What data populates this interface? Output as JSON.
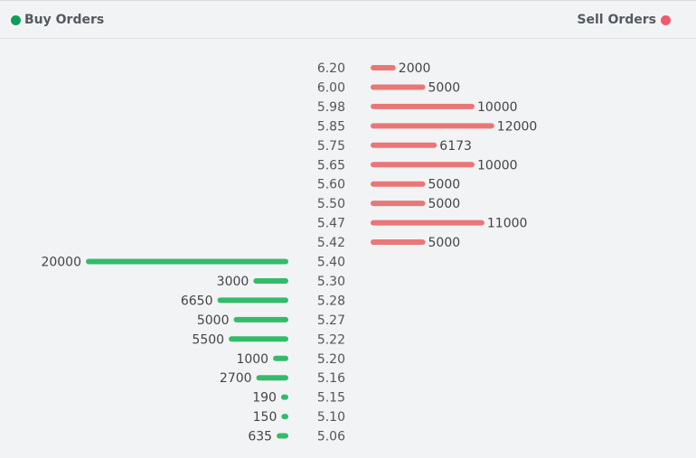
{
  "legend": {
    "buy_label": "Buy Orders",
    "sell_label": "Sell Orders",
    "buy_color": "#0f9d58",
    "sell_color": "#ef5a6f"
  },
  "chart_data": {
    "type": "bar",
    "orientation": "horizontal",
    "xlim": [
      0,
      20000
    ],
    "series": [
      {
        "name": "Sell Orders",
        "color": "#e97777",
        "points": [
          {
            "price": "6.20",
            "volume": 2000
          },
          {
            "price": "6.00",
            "volume": 5000
          },
          {
            "price": "5.98",
            "volume": 10000
          },
          {
            "price": "5.85",
            "volume": 12000
          },
          {
            "price": "5.75",
            "volume": 6173
          },
          {
            "price": "5.65",
            "volume": 10000
          },
          {
            "price": "5.60",
            "volume": 5000
          },
          {
            "price": "5.50",
            "volume": 5000
          },
          {
            "price": "5.47",
            "volume": 11000
          },
          {
            "price": "5.42",
            "volume": 5000
          }
        ]
      },
      {
        "name": "Buy Orders",
        "color": "#34bb6a",
        "points": [
          {
            "price": "5.40",
            "volume": 20000
          },
          {
            "price": "5.30",
            "volume": 3000
          },
          {
            "price": "5.28",
            "volume": 6650
          },
          {
            "price": "5.27",
            "volume": 5000
          },
          {
            "price": "5.22",
            "volume": 5500
          },
          {
            "price": "5.20",
            "volume": 1000
          },
          {
            "price": "5.16",
            "volume": 2700
          },
          {
            "price": "5.15",
            "volume": 190
          },
          {
            "price": "5.10",
            "volume": 150
          },
          {
            "price": "5.06",
            "volume": 635
          }
        ]
      }
    ]
  }
}
